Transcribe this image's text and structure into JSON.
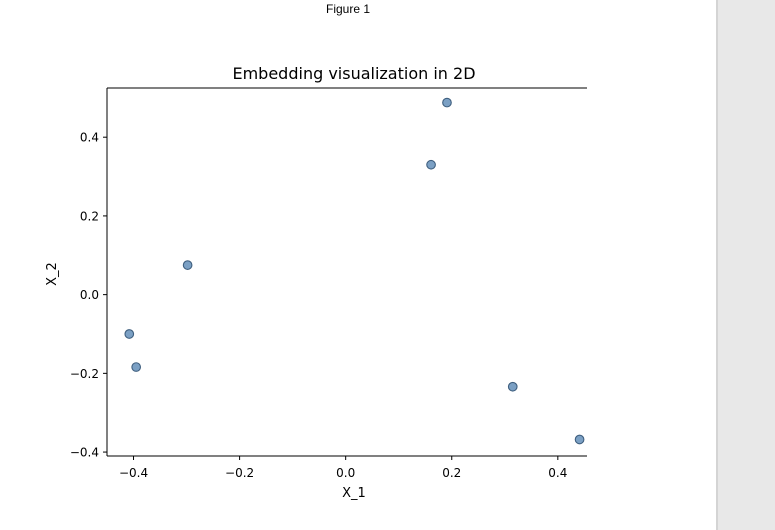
{
  "window": {
    "title": "Figure 1"
  },
  "colors": {
    "point_fill": "#7ba0c4",
    "point_edge": "#3f5f7f",
    "axis": "#000000",
    "side_panel": "#e8e8e8"
  },
  "chart_data": {
    "type": "scatter",
    "title": "Embedding visualization in 2D",
    "xlabel": "X_1",
    "ylabel": "X_2",
    "xlim": [
      -0.45,
      0.455
    ],
    "ylim": [
      -0.41,
      0.525
    ],
    "xticks": [
      -0.4,
      -0.2,
      0.0,
      0.2,
      0.4
    ],
    "xtick_labels": [
      "−0.4",
      "−0.2",
      "0.0",
      "0.2",
      "0.4"
    ],
    "yticks": [
      -0.4,
      -0.2,
      0.0,
      0.2,
      0.4
    ],
    "ytick_labels": [
      "−0.4",
      "−0.2",
      "0.0",
      "0.2",
      "0.4"
    ],
    "grid": false,
    "spines": [
      "left",
      "top",
      "bottom"
    ],
    "x": [
      -0.408,
      -0.395,
      -0.298,
      0.161,
      0.191,
      0.315,
      0.441
    ],
    "y": [
      -0.1,
      -0.184,
      0.075,
      0.33,
      0.488,
      -0.234,
      -0.368
    ]
  }
}
